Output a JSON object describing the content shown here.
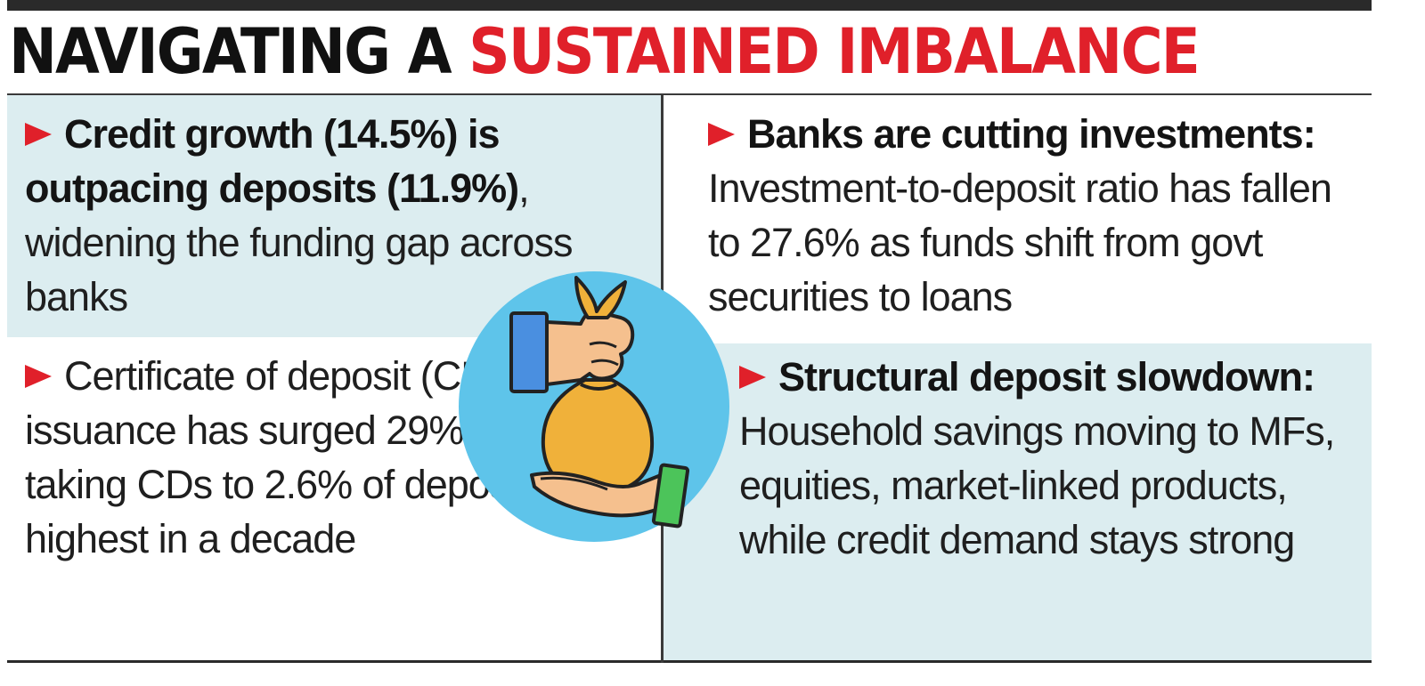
{
  "title": {
    "part1": "NAVIGATING A ",
    "part2": "SUSTAINED IMBALANCE"
  },
  "colors": {
    "accent_red": "#e0202a",
    "panel_blue": "#dcedf0",
    "circle_blue": "#5ec4ea"
  },
  "panels": {
    "top_left": {
      "bold": "Credit growth (14.5%) is outpacing deposits (11.9%)",
      "text": ", widening the funding gap across banks"
    },
    "top_right": {
      "bold": "Banks are cutting investments:",
      "text": "Investment-to-deposit ratio has fallen to 27.6% as funds shift from govt securities to loans"
    },
    "bottom_left": {
      "bold": "",
      "text": "Certificate of deposit (CD) issuance has surged 29% YoY, taking CDs to 2.6% of deposits, highest in a decade"
    },
    "bottom_right": {
      "bold": "Structural deposit slowdown:",
      "text": "Household savings moving to MFs, equities, market-linked products, while credit demand stays strong"
    }
  },
  "icons": [
    "arrow-bullet-icon",
    "money-bag-hand-icon"
  ]
}
